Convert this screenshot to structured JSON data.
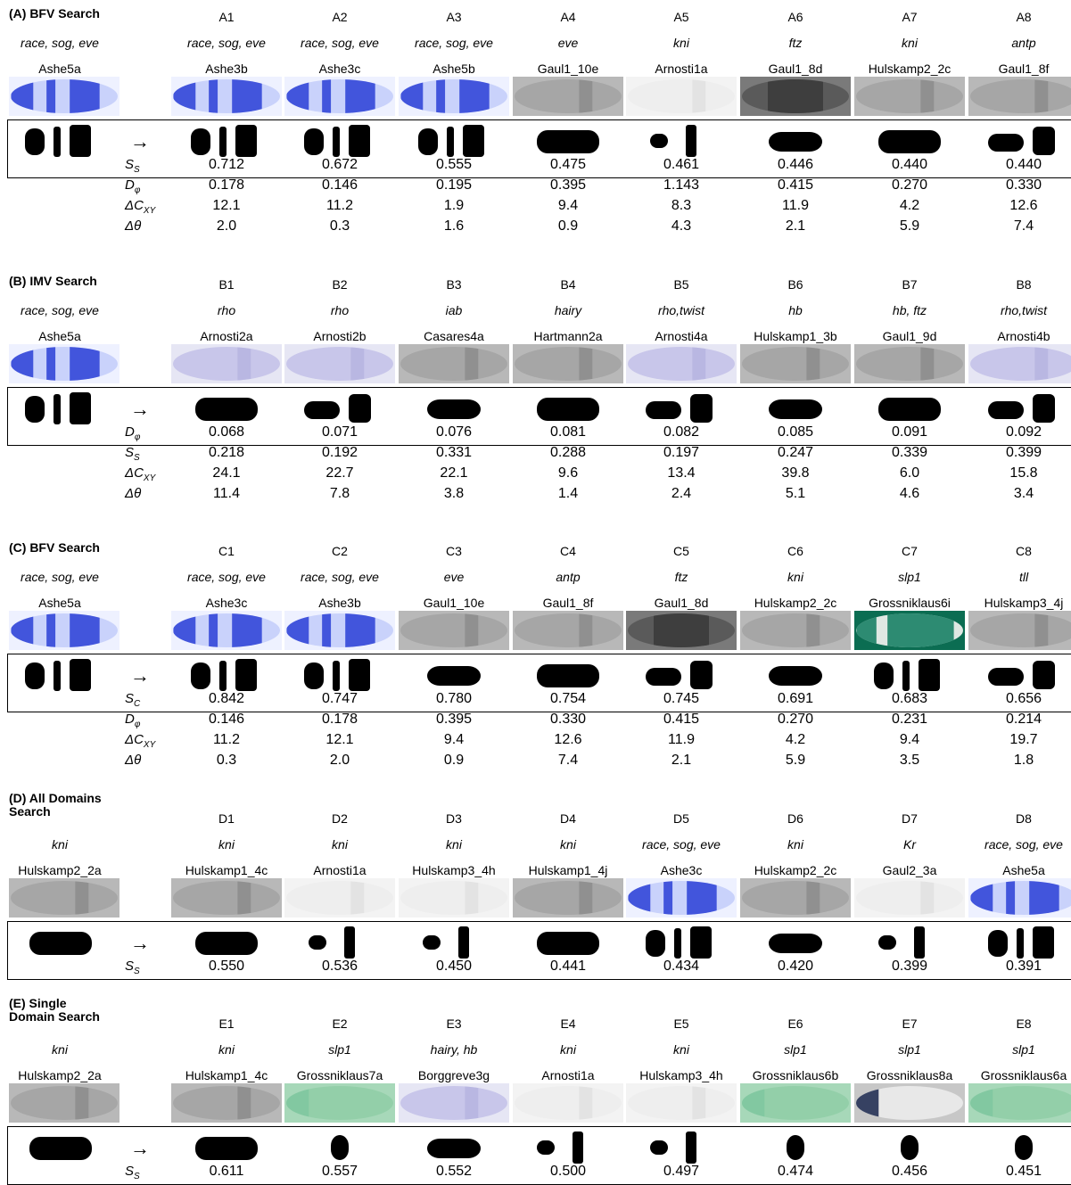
{
  "panels": [
    {
      "title": "(A) BFV Search",
      "query": {
        "gene": "race, sog, eve",
        "name": "Ashe5a",
        "style": "blue"
      },
      "results": [
        {
          "label": "A1",
          "gene": "race, sog, eve",
          "name": "Ashe3b",
          "style": "blue"
        },
        {
          "label": "A2",
          "gene": "race, sog, eve",
          "name": "Ashe3c",
          "style": "blue"
        },
        {
          "label": "A3",
          "gene": "race, sog, eve",
          "name": "Ashe5b",
          "style": "blue"
        },
        {
          "label": "A4",
          "gene": "eve",
          "name": "Gaul1_10e",
          "style": "gray"
        },
        {
          "label": "A5",
          "gene": "kni",
          "name": "Arnosti1a",
          "style": "light"
        },
        {
          "label": "A6",
          "gene": "ftz",
          "name": "Gaul1_8d",
          "style": "dark"
        },
        {
          "label": "A7",
          "gene": "kni",
          "name": "Hulskamp2_2c",
          "style": "gray"
        },
        {
          "label": "A8",
          "gene": "antp",
          "name": "Gaul1_8f",
          "style": "gray"
        }
      ],
      "metrics": [
        {
          "sym": "S",
          "sub": "S",
          "values": [
            "0.712",
            "0.672",
            "0.555",
            "0.475",
            "0.461",
            "0.446",
            "0.440",
            "0.440"
          ]
        },
        {
          "sym": "D",
          "sub": "φ",
          "values": [
            "0.178",
            "0.146",
            "0.195",
            "0.395",
            "1.143",
            "0.415",
            "0.270",
            "0.330"
          ]
        },
        {
          "sym": "ΔC",
          "sub": "XY",
          "values": [
            "12.1",
            "11.2",
            "1.9",
            "9.4",
            "8.3",
            "11.9",
            "4.2",
            "12.6"
          ]
        },
        {
          "sym": "Δθ",
          "sub": "",
          "values": [
            "2.0",
            "0.3",
            "1.6",
            "0.9",
            "4.3",
            "2.1",
            "5.9",
            "7.4"
          ]
        }
      ]
    },
    {
      "title": "(B) IMV Search",
      "query": {
        "gene": "race, sog, eve",
        "name": "Ashe5a",
        "style": "blue"
      },
      "results": [
        {
          "label": "B1",
          "gene": "rho",
          "name": "Arnosti2a",
          "style": "lilac"
        },
        {
          "label": "B2",
          "gene": "rho",
          "name": "Arnosti2b",
          "style": "lilac"
        },
        {
          "label": "B3",
          "gene": "iab",
          "name": "Casares4a",
          "style": "gray"
        },
        {
          "label": "B4",
          "gene": "hairy",
          "name": "Hartmann2a",
          "style": "gray"
        },
        {
          "label": "B5",
          "gene": "rho,twist",
          "name": "Arnosti4a",
          "style": "lilac"
        },
        {
          "label": "B6",
          "gene": "hb",
          "name": "Hulskamp1_3b",
          "style": "gray"
        },
        {
          "label": "B7",
          "gene": "hb, ftz",
          "name": "Gaul1_9d",
          "style": "gray"
        },
        {
          "label": "B8",
          "gene": "rho,twist",
          "name": "Arnosti4b",
          "style": "lilac"
        }
      ],
      "metrics": [
        {
          "sym": "D",
          "sub": "φ",
          "values": [
            "0.068",
            "0.071",
            "0.076",
            "0.081",
            "0.082",
            "0.085",
            "0.091",
            "0.092"
          ]
        },
        {
          "sym": "S",
          "sub": "S",
          "values": [
            "0.218",
            "0.192",
            "0.331",
            "0.288",
            "0.197",
            "0.247",
            "0.339",
            "0.399"
          ]
        },
        {
          "sym": "ΔC",
          "sub": "XY",
          "values": [
            "24.1",
            "22.7",
            "22.1",
            "9.6",
            "13.4",
            "39.8",
            "6.0",
            "15.8"
          ]
        },
        {
          "sym": "Δθ",
          "sub": "",
          "values": [
            "11.4",
            "7.8",
            "3.8",
            "1.4",
            "2.4",
            "5.1",
            "4.6",
            "3.4"
          ]
        }
      ]
    },
    {
      "title": "(C) BFV Search",
      "query": {
        "gene": "race, sog, eve",
        "name": "Ashe5a",
        "style": "blue"
      },
      "results": [
        {
          "label": "C1",
          "gene": "race, sog, eve",
          "name": "Ashe3c",
          "style": "blue"
        },
        {
          "label": "C2",
          "gene": "race, sog, eve",
          "name": "Ashe3b",
          "style": "blue"
        },
        {
          "label": "C3",
          "gene": "eve",
          "name": "Gaul1_10e",
          "style": "gray"
        },
        {
          "label": "C4",
          "gene": "antp",
          "name": "Gaul1_8f",
          "style": "gray"
        },
        {
          "label": "C5",
          "gene": "ftz",
          "name": "Gaul1_8d",
          "style": "dark"
        },
        {
          "label": "C6",
          "gene": "kni",
          "name": "Hulskamp2_2c",
          "style": "gray"
        },
        {
          "label": "C7",
          "gene": "slp1",
          "name": "Grossniklaus6i",
          "style": "teal"
        },
        {
          "label": "C8",
          "gene": "tll",
          "name": "Hulskamp3_4j",
          "style": "gray"
        }
      ],
      "metrics": [
        {
          "sym": "S",
          "sub": "C",
          "values": [
            "0.842",
            "0.747",
            "0.780",
            "0.754",
            "0.745",
            "0.691",
            "0.683",
            "0.656"
          ]
        },
        {
          "sym": "D",
          "sub": "φ",
          "values": [
            "0.146",
            "0.178",
            "0.395",
            "0.330",
            "0.415",
            "0.270",
            "0.231",
            "0.214"
          ]
        },
        {
          "sym": "ΔC",
          "sub": "XY",
          "values": [
            "11.2",
            "12.1",
            "9.4",
            "12.6",
            "11.9",
            "4.2",
            "9.4",
            "19.7"
          ]
        },
        {
          "sym": "Δθ",
          "sub": "",
          "values": [
            "0.3",
            "2.0",
            "0.9",
            "7.4",
            "2.1",
            "5.9",
            "3.5",
            "1.8"
          ]
        }
      ]
    },
    {
      "title": "(D) All Domains\nSearch",
      "query": {
        "gene": "kni",
        "name": "Hulskamp2_2a",
        "style": "gray"
      },
      "results": [
        {
          "label": "D1",
          "gene": "kni",
          "name": "Hulskamp1_4c",
          "style": "gray"
        },
        {
          "label": "D2",
          "gene": "kni",
          "name": "Arnosti1a",
          "style": "light"
        },
        {
          "label": "D3",
          "gene": "kni",
          "name": "Hulskamp3_4h",
          "style": "light"
        },
        {
          "label": "D4",
          "gene": "kni",
          "name": "Hulskamp1_4j",
          "style": "gray"
        },
        {
          "label": "D5",
          "gene": "race, sog, eve",
          "name": "Ashe3c",
          "style": "blue"
        },
        {
          "label": "D6",
          "gene": "kni",
          "name": "Hulskamp2_2c",
          "style": "gray"
        },
        {
          "label": "D7",
          "gene": "Kr",
          "name": "Gaul2_3a",
          "style": "light"
        },
        {
          "label": "D8",
          "gene": "race, sog, eve",
          "name": "Ashe5a",
          "style": "blue"
        }
      ],
      "metrics": [
        {
          "sym": "S",
          "sub": "S",
          "values": [
            "0.550",
            "0.536",
            "0.450",
            "0.441",
            "0.434",
            "0.420",
            "0.399",
            "0.391"
          ]
        }
      ]
    },
    {
      "title": "(E) Single\nDomain Search",
      "query": {
        "gene": "kni",
        "name": "Hulskamp2_2a",
        "style": "gray"
      },
      "results": [
        {
          "label": "E1",
          "gene": "kni",
          "name": "Hulskamp1_4c",
          "style": "gray"
        },
        {
          "label": "E2",
          "gene": "slp1",
          "name": "Grossniklaus7a",
          "style": "green"
        },
        {
          "label": "E3",
          "gene": "hairy, hb",
          "name": "Borggreve3g",
          "style": "lilac"
        },
        {
          "label": "E4",
          "gene": "kni",
          "name": "Arnosti1a",
          "style": "light"
        },
        {
          "label": "E5",
          "gene": "kni",
          "name": "Hulskamp3_4h",
          "style": "light"
        },
        {
          "label": "E6",
          "gene": "slp1",
          "name": "Grossniklaus6b",
          "style": "green"
        },
        {
          "label": "E7",
          "gene": "slp1",
          "name": "Grossniklaus8a",
          "style": "navy"
        },
        {
          "label": "E8",
          "gene": "slp1",
          "name": "Grossniklaus6a",
          "style": "green"
        }
      ],
      "metrics": [
        {
          "sym": "S",
          "sub": "S",
          "values": [
            "0.611",
            "0.557",
            "0.552",
            "0.500",
            "0.497",
            "0.474",
            "0.456",
            "0.451"
          ]
        }
      ]
    }
  ],
  "arrow": "→",
  "colors": {
    "blue": "#2a3fd6",
    "gray": "#8c8c8c",
    "light": "#dcdcdc",
    "dark": "#3a3a3a",
    "lilac": "#b6b4e0",
    "teal": "#0e7a5e",
    "green": "#7fc7a0",
    "navy": "#16234a"
  }
}
